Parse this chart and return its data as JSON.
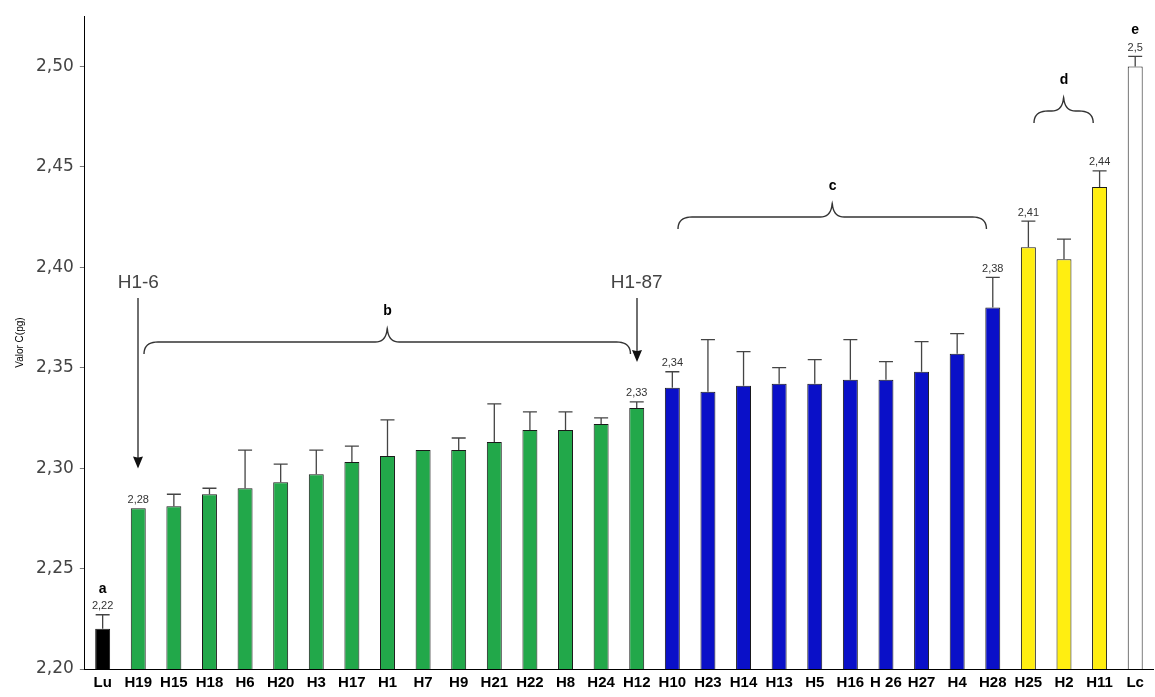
{
  "chart_data": {
    "type": "bar",
    "ylabel": "Valor C(pg)",
    "categories": [
      "Lu",
      "H19",
      "H15",
      "H18",
      "H6",
      "H20",
      "H3",
      "H17",
      "H1",
      "H7",
      "H9",
      "H21",
      "H22",
      "H8",
      "H24",
      "H12",
      "H10",
      "H23",
      "H14",
      "H13",
      "H5",
      "H16",
      "H 26",
      "H27",
      "H4",
      "H28",
      "H25",
      "H2",
      "H11",
      "Lc"
    ],
    "values": [
      2.22,
      2.28,
      2.281,
      2.287,
      2.29,
      2.293,
      2.297,
      2.303,
      2.306,
      2.309,
      2.309,
      2.313,
      2.319,
      2.319,
      2.322,
      2.33,
      2.34,
      2.338,
      2.341,
      2.342,
      2.342,
      2.344,
      2.344,
      2.348,
      2.357,
      2.38,
      2.41,
      2.404,
      2.44,
      2.5
    ],
    "errors": [
      [
        2.22,
        2.227
      ],
      null,
      [
        2.281,
        2.287
      ],
      [
        2.287,
        2.29
      ],
      [
        2.29,
        2.309
      ],
      [
        2.293,
        2.302
      ],
      [
        2.297,
        2.309
      ],
      [
        2.303,
        2.311
      ],
      [
        2.306,
        2.324
      ],
      null,
      [
        2.309,
        2.315
      ],
      [
        2.313,
        2.332
      ],
      [
        2.319,
        2.328
      ],
      [
        2.319,
        2.328
      ],
      [
        2.322,
        2.325
      ],
      [
        2.33,
        2.333
      ],
      [
        2.34,
        2.348
      ],
      [
        2.338,
        2.364
      ],
      [
        2.341,
        2.358
      ],
      [
        2.342,
        2.35
      ],
      [
        2.342,
        2.354
      ],
      [
        2.344,
        2.364
      ],
      [
        2.344,
        2.353
      ],
      [
        2.348,
        2.363
      ],
      [
        2.357,
        2.367
      ],
      [
        2.38,
        2.395
      ],
      [
        2.41,
        2.423
      ],
      [
        2.404,
        2.414
      ],
      [
        2.44,
        2.448
      ],
      [
        2.5,
        2.505
      ]
    ],
    "value_labels": [
      "2,22",
      "2,28",
      null,
      null,
      null,
      null,
      null,
      null,
      null,
      null,
      null,
      null,
      null,
      null,
      null,
      "2,33",
      "2,34",
      null,
      null,
      null,
      null,
      null,
      null,
      null,
      null,
      "2,38",
      "2,41",
      null,
      "2,44",
      "2,5"
    ],
    "colors": [
      "#000000",
      "#22a84a",
      "#22a84a",
      "#22a84a",
      "#22a84a",
      "#22a84a",
      "#22a84a",
      "#22a84a",
      "#22a84a",
      "#22a84a",
      "#22a84a",
      "#22a84a",
      "#22a84a",
      "#22a84a",
      "#22a84a",
      "#22a84a",
      "#0a10c8",
      "#0a10c8",
      "#0a10c8",
      "#0a10c8",
      "#0a10c8",
      "#0a10c8",
      "#0a10c8",
      "#0a10c8",
      "#0a10c8",
      "#0a10c8",
      "#ffee11",
      "#ffee11",
      "#ffee11",
      "#ffffff"
    ],
    "ylim": [
      2.2,
      2.525
    ],
    "yticks": [
      {
        "value": 2.2,
        "label": "2,20"
      },
      {
        "value": 2.25,
        "label": "2,25"
      },
      {
        "value": 2.3,
        "label": "2,30"
      },
      {
        "value": 2.35,
        "label": "2,35"
      },
      {
        "value": 2.4,
        "label": "2,40"
      },
      {
        "value": 2.45,
        "label": "2,45"
      },
      {
        "value": 2.5,
        "label": "2,50"
      }
    ],
    "annotations": [
      {
        "text": "a",
        "x": "Lu",
        "y": 2.22
      },
      "b",
      "c",
      "d",
      {
        "text": "e",
        "x": "Lc",
        "y": 2.5
      },
      "H1-6",
      "H1-87"
    ],
    "grid": false,
    "legend": false
  }
}
